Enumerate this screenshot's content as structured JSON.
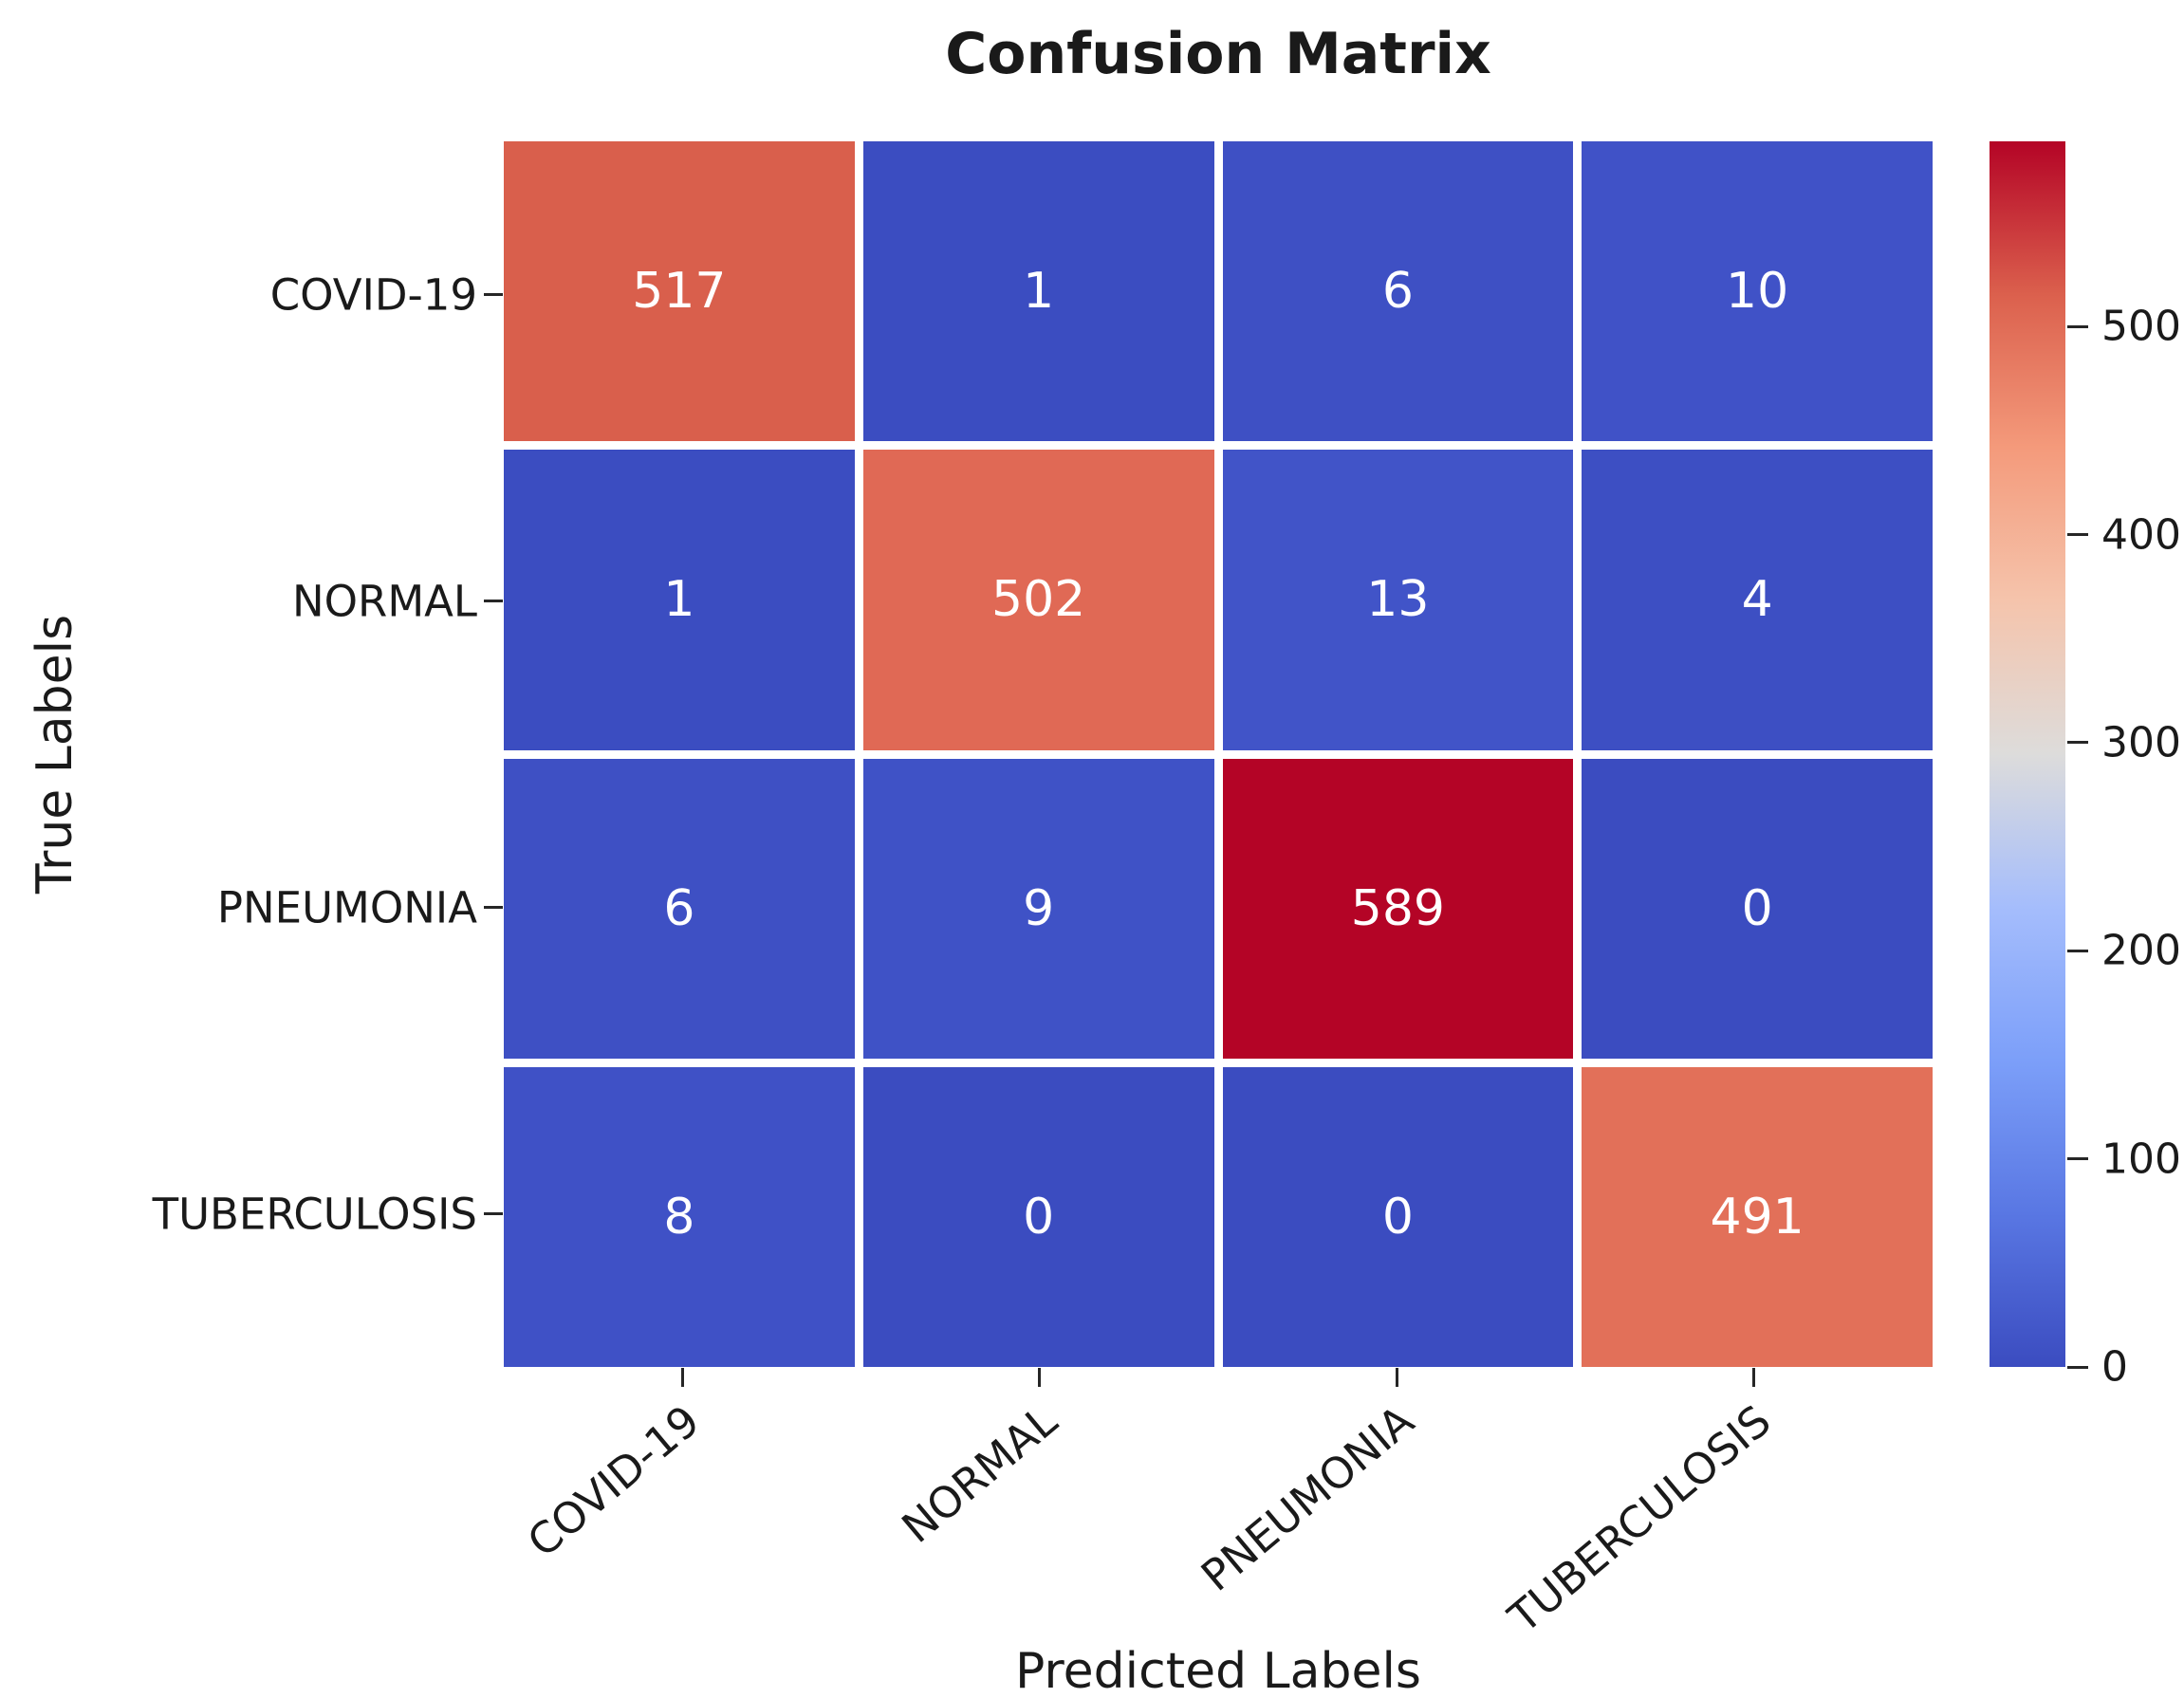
{
  "title": "Confusion Matrix",
  "xlabel": "Predicted Labels",
  "ylabel": "True Labels",
  "chart_data": {
    "type": "heatmap",
    "title": "Confusion Matrix",
    "xlabel": "Predicted Labels",
    "ylabel": "True Labels",
    "x_categories": [
      "COVID-19",
      "NORMAL",
      "PNEUMONIA",
      "TUBERCULOSIS"
    ],
    "y_categories": [
      "COVID-19",
      "NORMAL",
      "PNEUMONIA",
      "TUBERCULOSIS"
    ],
    "matrix": [
      [
        517,
        1,
        6,
        10
      ],
      [
        1,
        502,
        13,
        4
      ],
      [
        6,
        9,
        589,
        0
      ],
      [
        8,
        0,
        0,
        491
      ]
    ],
    "colormap": "coolwarm",
    "vmin": 0,
    "vmax": 589,
    "colorbar_ticks": [
      0,
      100,
      200,
      300,
      400,
      500
    ],
    "annotation_color": "#ffffff",
    "grid_line_color": "#ffffff",
    "cell_colors": [
      [
        "#d95f4c",
        "#3b4dc1",
        "#3e50c4",
        "#4052c7"
      ],
      [
        "#3b4dc1",
        "#e06955",
        "#4154c8",
        "#3d4fc3"
      ],
      [
        "#3e50c4",
        "#3f52c6",
        "#b40426",
        "#3b4cc0"
      ],
      [
        "#3f51c6",
        "#3b4cc0",
        "#3b4cc0",
        "#e27059"
      ]
    ],
    "legend_position": "right-colorbar",
    "x_tick_rotation_deg": 40
  }
}
